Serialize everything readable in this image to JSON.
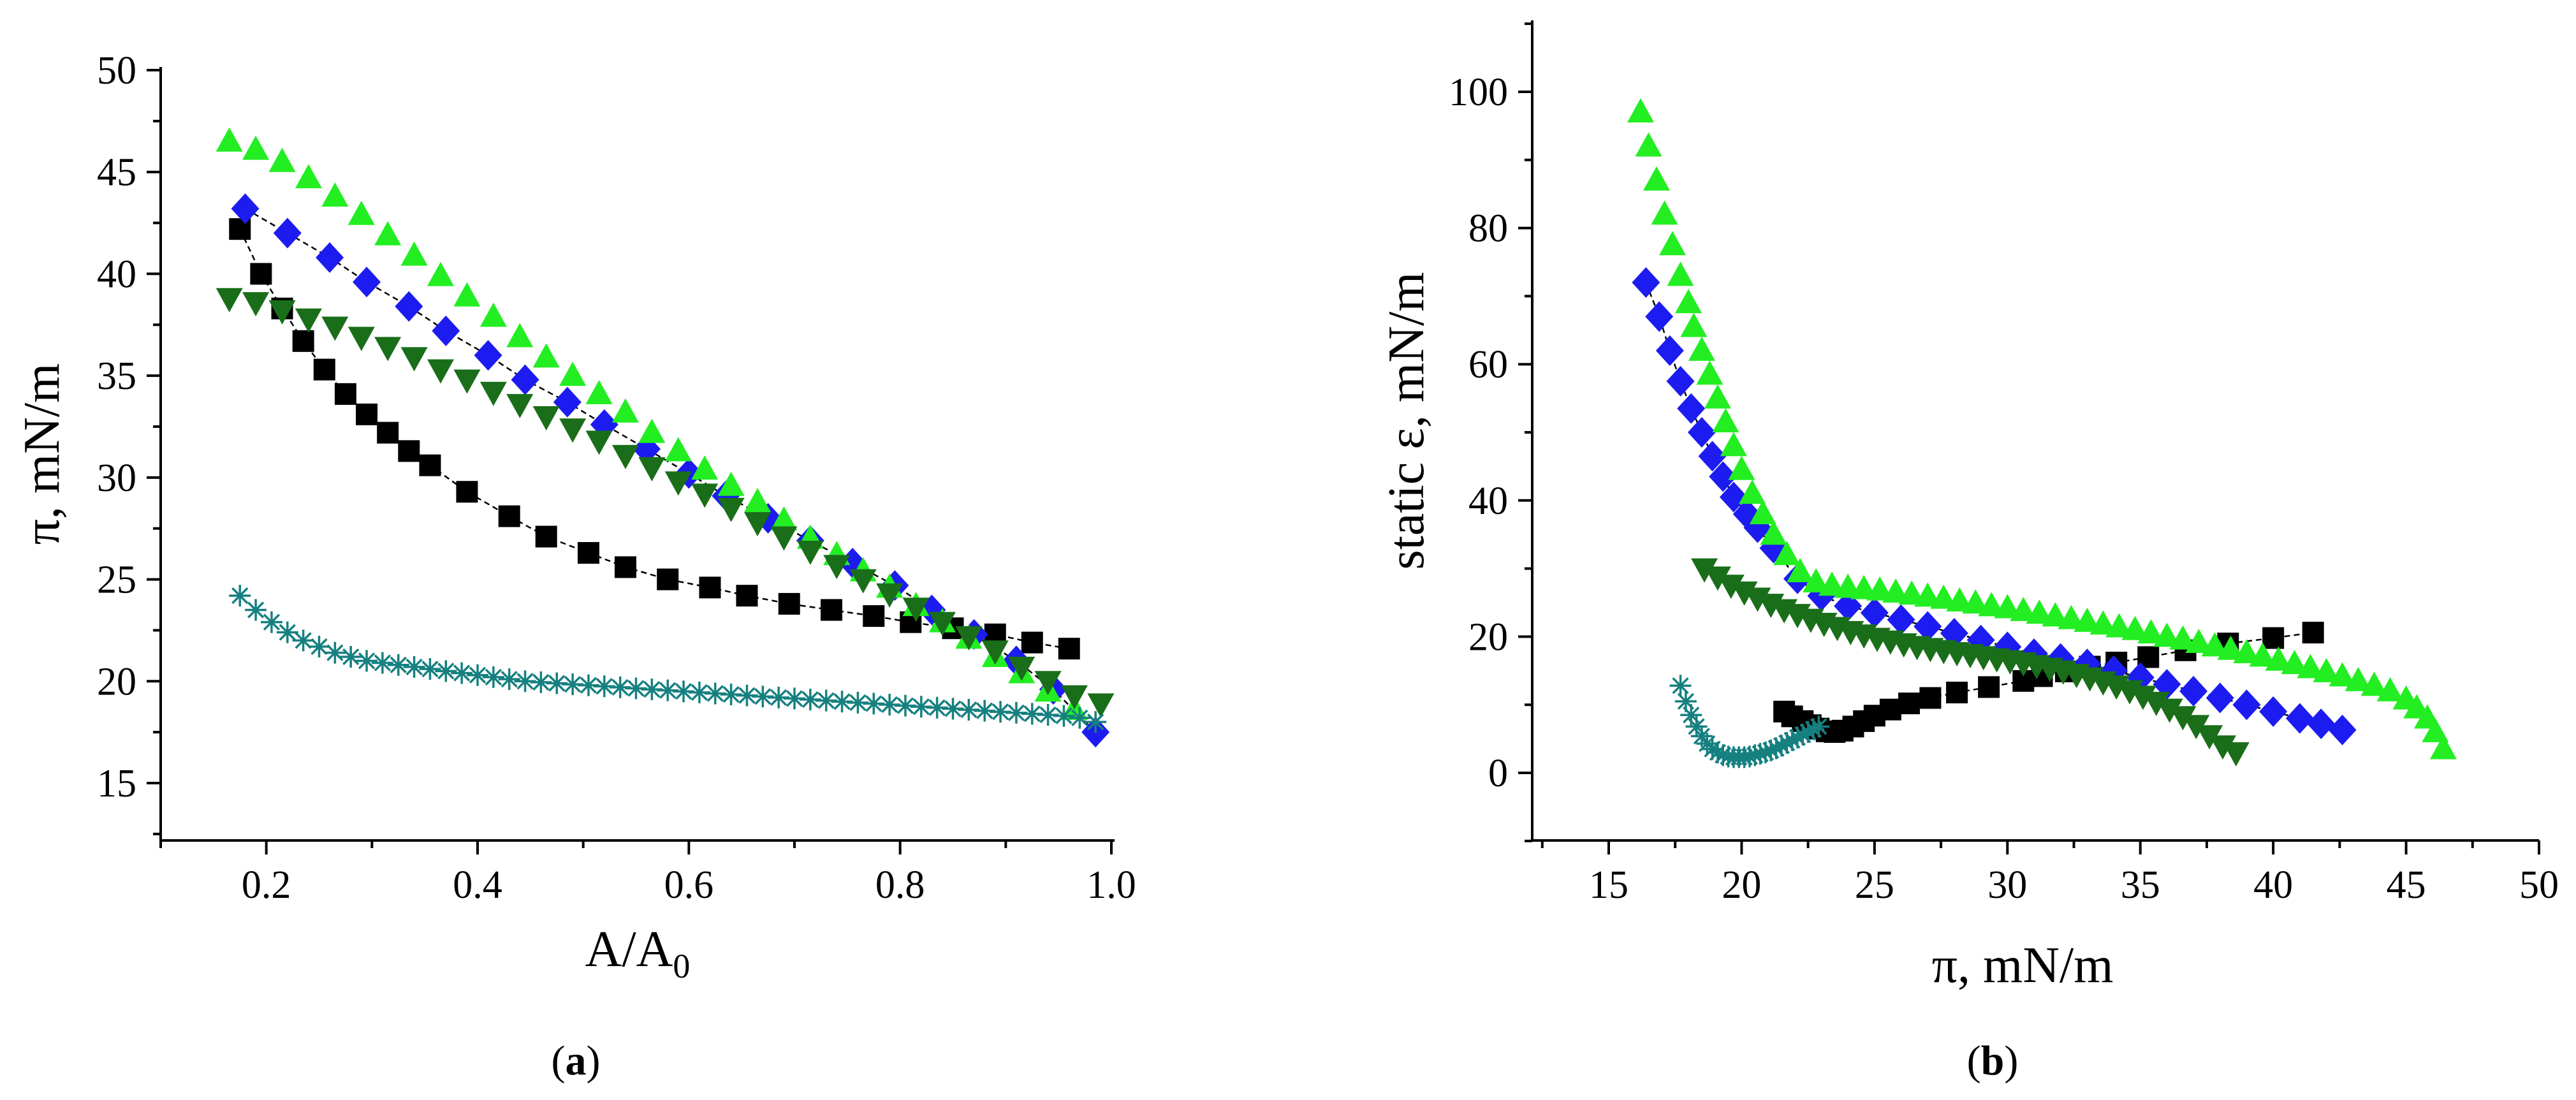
{
  "figure": {
    "panel_a": "a",
    "panel_b": "b"
  },
  "chart_data": [
    {
      "type": "scatter",
      "panel": "a",
      "xlabel": "A/A",
      "xlabel_sub": "0",
      "ylabel": "π, mN/m",
      "xlim": [
        0.1,
        1.0
      ],
      "ylim": [
        12,
        50
      ],
      "xticks": [
        0.2,
        0.4,
        0.6,
        0.8,
        1.0
      ],
      "xtick_labels": [
        "0.2",
        "0.4",
        "0.6",
        "0.8",
        "1.0"
      ],
      "yticks": [
        15,
        20,
        25,
        30,
        35,
        40,
        45,
        50
      ],
      "ytick_labels": [
        "15",
        "20",
        "25",
        "30",
        "35",
        "40",
        "45",
        "50"
      ],
      "series": [
        {
          "name": "black squares",
          "marker": "square",
          "color": "#000000",
          "line": true,
          "x": [
            0.175,
            0.195,
            0.215,
            0.235,
            0.255,
            0.275,
            0.295,
            0.315,
            0.335,
            0.355,
            0.39,
            0.43,
            0.465,
            0.505,
            0.54,
            0.58,
            0.62,
            0.655,
            0.695,
            0.735,
            0.775,
            0.81,
            0.85,
            0.89,
            0.925,
            0.96
          ],
          "y": [
            42.2,
            40.0,
            38.3,
            36.7,
            35.3,
            34.1,
            33.1,
            32.2,
            31.3,
            30.6,
            29.3,
            28.1,
            27.1,
            26.3,
            25.6,
            25.0,
            24.6,
            24.2,
            23.8,
            23.5,
            23.2,
            22.9,
            22.6,
            22.3,
            21.9,
            21.6
          ]
        },
        {
          "name": "blue diamonds",
          "marker": "diamond",
          "color": "#1c1cf0",
          "line": true,
          "x": [
            0.18,
            0.22,
            0.26,
            0.295,
            0.335,
            0.37,
            0.41,
            0.445,
            0.485,
            0.52,
            0.56,
            0.6,
            0.635,
            0.675,
            0.715,
            0.755,
            0.795,
            0.83,
            0.87,
            0.91,
            0.945,
            0.985
          ],
          "y": [
            43.2,
            42.0,
            40.8,
            39.6,
            38.4,
            37.2,
            36.0,
            34.8,
            33.7,
            32.6,
            31.4,
            30.2,
            29.1,
            28.0,
            26.9,
            25.8,
            24.7,
            23.5,
            22.3,
            21.0,
            19.6,
            17.5
          ]
        },
        {
          "name": "bright green triangles up",
          "marker": "triangle-up",
          "color": "#22ee22",
          "line": false,
          "x": [
            0.165,
            0.19,
            0.215,
            0.24,
            0.265,
            0.29,
            0.315,
            0.34,
            0.365,
            0.39,
            0.415,
            0.44,
            0.465,
            0.49,
            0.515,
            0.54,
            0.565,
            0.59,
            0.615,
            0.64,
            0.665,
            0.69,
            0.715,
            0.74,
            0.765,
            0.79,
            0.815,
            0.84,
            0.865,
            0.89,
            0.915,
            0.94,
            0.965
          ],
          "y": [
            46.5,
            46.1,
            45.5,
            44.7,
            43.8,
            42.9,
            41.9,
            40.9,
            39.9,
            38.9,
            37.9,
            36.9,
            35.9,
            35.0,
            34.1,
            33.2,
            32.2,
            31.3,
            30.4,
            29.6,
            28.8,
            27.9,
            27.0,
            26.2,
            25.4,
            24.6,
            23.7,
            22.9,
            22.1,
            21.2,
            20.4,
            19.5,
            18.6
          ]
        },
        {
          "name": "dark green triangles down",
          "marker": "triangle-down",
          "color": "#1a6e1a",
          "line": false,
          "x": [
            0.165,
            0.19,
            0.215,
            0.24,
            0.265,
            0.29,
            0.315,
            0.34,
            0.365,
            0.39,
            0.415,
            0.44,
            0.465,
            0.49,
            0.515,
            0.54,
            0.565,
            0.59,
            0.615,
            0.64,
            0.665,
            0.69,
            0.715,
            0.74,
            0.765,
            0.79,
            0.815,
            0.84,
            0.865,
            0.89,
            0.915,
            0.94,
            0.965,
            0.99
          ],
          "y": [
            38.8,
            38.6,
            38.2,
            37.8,
            37.4,
            36.9,
            36.4,
            35.9,
            35.3,
            34.8,
            34.2,
            33.6,
            33.0,
            32.4,
            31.8,
            31.1,
            30.5,
            29.8,
            29.2,
            28.5,
            27.8,
            27.1,
            26.4,
            25.7,
            25.0,
            24.3,
            23.6,
            22.9,
            22.2,
            21.5,
            20.7,
            20.0,
            19.3,
            18.9
          ]
        },
        {
          "name": "teal asterisks",
          "marker": "asterisk",
          "color": "#168080",
          "line": false,
          "x": [
            0.175,
            0.19,
            0.205,
            0.22,
            0.235,
            0.25,
            0.265,
            0.28,
            0.295,
            0.31,
            0.325,
            0.34,
            0.355,
            0.37,
            0.385,
            0.4,
            0.415,
            0.43,
            0.445,
            0.46,
            0.475,
            0.49,
            0.505,
            0.52,
            0.535,
            0.55,
            0.565,
            0.58,
            0.595,
            0.61,
            0.625,
            0.64,
            0.655,
            0.67,
            0.685,
            0.7,
            0.715,
            0.73,
            0.745,
            0.76,
            0.775,
            0.79,
            0.805,
            0.82,
            0.835,
            0.85,
            0.865,
            0.88,
            0.895,
            0.91,
            0.925,
            0.94,
            0.955,
            0.97,
            0.985
          ],
          "y": [
            24.2,
            23.5,
            22.9,
            22.4,
            22.0,
            21.7,
            21.4,
            21.2,
            21.0,
            20.9,
            20.8,
            20.7,
            20.6,
            20.5,
            20.4,
            20.3,
            20.2,
            20.1,
            20.0,
            19.95,
            19.9,
            19.85,
            19.8,
            19.75,
            19.7,
            19.65,
            19.6,
            19.55,
            19.5,
            19.45,
            19.4,
            19.35,
            19.3,
            19.25,
            19.2,
            19.15,
            19.1,
            19.05,
            19.0,
            18.95,
            18.9,
            18.85,
            18.8,
            18.75,
            18.7,
            18.65,
            18.6,
            18.55,
            18.5,
            18.45,
            18.4,
            18.35,
            18.3,
            18.2,
            18.0
          ]
        }
      ]
    },
    {
      "type": "scatter",
      "panel": "b",
      "xlabel": "π, mN/m",
      "ylabel": "static ε, mN/m",
      "xlim": [
        12.5,
        50
      ],
      "ylim": [
        -10,
        110
      ],
      "xticks": [
        15,
        20,
        25,
        30,
        35,
        40,
        45,
        50
      ],
      "xtick_labels": [
        "15",
        "20",
        "25",
        "30",
        "35",
        "40",
        "45",
        "50"
      ],
      "yticks": [
        0,
        20,
        40,
        60,
        80,
        100
      ],
      "ytick_labels": [
        "0",
        "20",
        "40",
        "60",
        "80",
        "100"
      ],
      "series": [
        {
          "name": "black squares",
          "marker": "square",
          "color": "#000000",
          "line": true,
          "x": [
            21.6,
            21.9,
            22.3,
            22.6,
            22.9,
            23.2,
            23.5,
            23.8,
            24.2,
            24.6,
            25.0,
            25.6,
            26.3,
            27.1,
            28.1,
            29.3,
            30.6,
            31.3,
            32.2,
            33.1,
            34.1,
            35.3,
            36.7,
            38.3,
            40.0,
            41.5
          ],
          "y": [
            9.0,
            8.3,
            7.6,
            7.0,
            6.5,
            6.1,
            6.0,
            6.2,
            6.8,
            7.6,
            8.4,
            9.3,
            10.2,
            11.0,
            11.8,
            12.6,
            13.5,
            14.2,
            14.9,
            15.6,
            16.2,
            17.0,
            18.0,
            19.0,
            19.8,
            20.6
          ]
        },
        {
          "name": "blue diamonds",
          "marker": "diamond",
          "color": "#1c1cf0",
          "line": true,
          "x": [
            16.4,
            16.9,
            17.3,
            17.7,
            18.1,
            18.5,
            18.9,
            19.3,
            19.7,
            20.2,
            20.6,
            21.2,
            22.1,
            23.0,
            24.0,
            25.0,
            26.0,
            27.0,
            28.0,
            29.0,
            30.0,
            31.0,
            32.0,
            33.0,
            34.0,
            35.0,
            36.0,
            37.0,
            38.0,
            39.0,
            40.0,
            41.0,
            41.8,
            42.6
          ],
          "y": [
            72.0,
            67.0,
            62.0,
            57.5,
            53.5,
            50.0,
            46.5,
            43.5,
            40.5,
            38.0,
            36.0,
            33.0,
            28.5,
            26.0,
            24.5,
            23.5,
            22.5,
            21.5,
            20.5,
            19.5,
            18.5,
            17.5,
            16.8,
            16.0,
            15.0,
            14.0,
            13.0,
            12.0,
            11.0,
            10.0,
            9.0,
            8.0,
            7.2,
            6.3
          ]
        },
        {
          "name": "bright green triangles up",
          "marker": "triangle-up",
          "color": "#22ee22",
          "line": false,
          "x": [
            16.2,
            16.5,
            16.8,
            17.1,
            17.4,
            17.7,
            18.0,
            18.2,
            18.5,
            18.8,
            19.1,
            19.4,
            19.7,
            20.0,
            20.4,
            20.8,
            21.2,
            21.7,
            22.2,
            22.8,
            23.4,
            24.0,
            24.6,
            25.2,
            25.8,
            26.4,
            27.0,
            27.6,
            28.2,
            28.8,
            29.4,
            30.0,
            30.6,
            31.2,
            31.8,
            32.4,
            33.0,
            33.6,
            34.2,
            34.8,
            35.4,
            36.0,
            36.6,
            37.2,
            37.8,
            38.4,
            39.0,
            39.6,
            40.2,
            40.8,
            41.4,
            42.0,
            42.6,
            43.2,
            43.8,
            44.4,
            45.0,
            45.4,
            45.8,
            46.1,
            46.4
          ],
          "y": [
            97.0,
            92.0,
            87.0,
            82.0,
            77.5,
            73.0,
            69.0,
            65.5,
            62.0,
            58.5,
            55.0,
            51.5,
            48.0,
            44.5,
            41.0,
            38.0,
            35.0,
            32.0,
            29.5,
            28.0,
            27.5,
            27.2,
            27.0,
            26.8,
            26.5,
            26.2,
            25.9,
            25.6,
            25.2,
            24.9,
            24.5,
            24.2,
            23.8,
            23.4,
            23.0,
            22.6,
            22.2,
            21.8,
            21.4,
            21.0,
            20.5,
            20.0,
            19.6,
            19.1,
            18.6,
            18.1,
            17.6,
            17.1,
            16.5,
            16.0,
            15.4,
            14.8,
            14.2,
            13.5,
            12.8,
            12.0,
            10.8,
            9.5,
            8.0,
            6.0,
            3.5
          ]
        },
        {
          "name": "dark green triangles down",
          "marker": "triangle-down",
          "color": "#1a6e1a",
          "line": false,
          "x": [
            18.6,
            19.1,
            19.6,
            20.1,
            20.6,
            21.1,
            21.6,
            22.1,
            22.6,
            23.1,
            23.6,
            24.1,
            24.6,
            25.1,
            25.6,
            26.1,
            26.6,
            27.1,
            27.6,
            28.1,
            28.6,
            29.1,
            29.6,
            30.1,
            30.6,
            31.1,
            31.6,
            32.1,
            32.6,
            33.1,
            33.6,
            34.1,
            34.6,
            35.1,
            35.6,
            36.1,
            36.6,
            37.1,
            37.6,
            38.1,
            38.6
          ],
          "y": [
            30.0,
            28.8,
            27.6,
            26.6,
            25.7,
            24.8,
            24.0,
            23.3,
            22.6,
            22.0,
            21.4,
            20.8,
            20.3,
            19.8,
            19.4,
            19.0,
            18.6,
            18.3,
            18.0,
            17.7,
            17.4,
            17.1,
            16.8,
            16.5,
            16.2,
            15.8,
            15.4,
            15.0,
            14.5,
            14.0,
            13.4,
            12.8,
            12.1,
            11.3,
            10.4,
            9.4,
            8.3,
            7.0,
            5.5,
            4.0,
            3.0
          ]
        },
        {
          "name": "teal asterisks",
          "marker": "asterisk",
          "color": "#168080",
          "line": false,
          "x": [
            17.7,
            17.9,
            18.1,
            18.3,
            18.5,
            18.7,
            18.9,
            19.1,
            19.3,
            19.5,
            19.7,
            19.9,
            20.1,
            20.3,
            20.5,
            20.7,
            20.9,
            21.1,
            21.3,
            21.5,
            21.7,
            21.9,
            22.1,
            22.3,
            22.5,
            22.7,
            22.9
          ],
          "y": [
            12.8,
            10.5,
            8.5,
            6.8,
            5.4,
            4.3,
            3.5,
            3.0,
            2.6,
            2.4,
            2.3,
            2.3,
            2.3,
            2.4,
            2.6,
            2.8,
            3.0,
            3.3,
            3.6,
            4.0,
            4.4,
            4.8,
            5.2,
            5.6,
            6.0,
            6.4,
            6.8
          ]
        }
      ]
    }
  ]
}
